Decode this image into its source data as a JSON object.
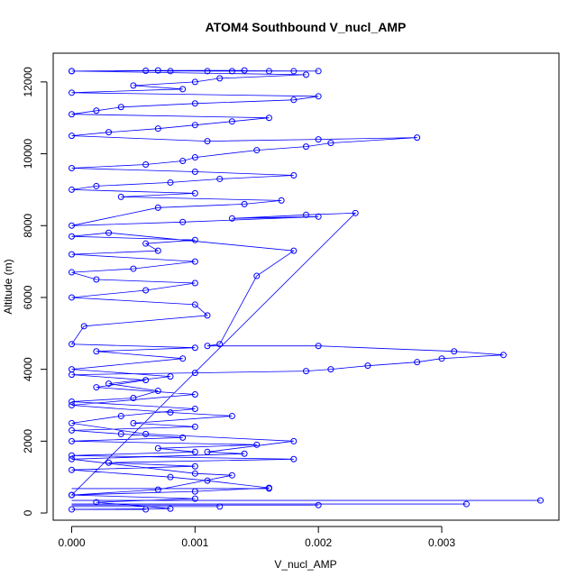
{
  "chart_data": {
    "type": "scatter",
    "title": "ATOM4 Southbound V_nucl_AMP",
    "xlabel": "V_nucl_AMP",
    "ylabel": "Altitude (m)",
    "xlim": [
      -0.00015,
      0.00395
    ],
    "ylim": [
      -200,
      12800
    ],
    "x_ticks": [
      0.0,
      0.001,
      0.002,
      0.003
    ],
    "x_tick_labels": [
      "0.000",
      "0.001",
      "0.002",
      "0.003"
    ],
    "y_ticks": [
      0,
      2000,
      4000,
      6000,
      8000,
      10000,
      12000
    ],
    "y_tick_labels": [
      "0",
      "2000",
      "4000",
      "6000",
      "8000",
      "10000",
      "12000"
    ],
    "grid": false,
    "legend": "none",
    "style": "points connected by lines (type='o')",
    "series_color": "#0000ff",
    "series": [
      {
        "x": [
          0.0,
          0.0008,
          0.0002,
          0.001,
          0.0,
          0.0007,
          0.0013,
          0.001,
          0.0,
          0.0014,
          0.0011,
          0.0018,
          0.0006,
          0.0,
          0.0004,
          0.001,
          0.0,
          0.0005,
          0.0007,
          0.0003,
          0.0008,
          0.0,
          0.0009,
          0.0002,
          0.001,
          0.0,
          0.0001,
          0.0011,
          0.001,
          0.0,
          0.0006,
          0.001,
          0.0002,
          0.0,
          0.0005,
          0.001,
          0.0,
          0.0007,
          0.0006,
          0.001,
          0.0,
          0.0003,
          0.0018,
          0.0015,
          0.0012,
          0.0011,
          0.002,
          0.0031,
          0.0035,
          0.003,
          0.0028,
          0.0024,
          0.0021,
          0.0019,
          0.001,
          0.0,
          0.0006,
          0.0002,
          0.001,
          0.0,
          0.0008,
          0.0013,
          0.0005,
          0.001,
          0.0,
          0.0004,
          0.0009,
          0.0,
          0.0015,
          0.0007,
          0.001,
          0.0,
          0.0018,
          0.0003,
          0.001,
          0.0,
          0.0008,
          0.0011,
          0.0016,
          0.001,
          0.0,
          0.0023,
          0.0019,
          0.0013,
          0.002,
          0.0009,
          0.0,
          0.0007,
          0.0014,
          0.0017,
          0.0004,
          0.001,
          0.0,
          0.0002,
          0.0008,
          0.0012,
          0.0018,
          0.001,
          0.0,
          0.0006,
          0.0009,
          0.001,
          0.0015,
          0.0019,
          0.0021,
          0.0028,
          0.002,
          0.0011,
          0.0,
          0.0003,
          0.0007,
          0.001,
          0.0013,
          0.0016,
          0.0,
          0.0002,
          0.0004,
          0.001,
          0.0018,
          0.002,
          0.0,
          0.0009,
          0.0005,
          0.001,
          0.0012,
          0.0019,
          0.0,
          0.0014,
          0.0008,
          0.0006,
          0.0011,
          0.0013,
          0.0016,
          0.0018,
          0.002,
          0.0007,
          0.0
        ],
        "y": [
          100,
          120,
          300,
          400,
          500,
          650,
          1050,
          1100,
          1500,
          1650,
          1700,
          2000,
          2200,
          2500,
          2700,
          2900,
          3100,
          3200,
          3400,
          3600,
          3800,
          4000,
          4300,
          4500,
          4600,
          4700,
          5200,
          5500,
          5800,
          6000,
          6200,
          6400,
          6500,
          6700,
          6800,
          7000,
          7200,
          7300,
          7500,
          7600,
          7700,
          7800,
          7300,
          6600,
          4700,
          4650,
          4650,
          4500,
          4400,
          4300,
          4200,
          4100,
          4000,
          3950,
          3900,
          3850,
          3700,
          3500,
          3300,
          3000,
          2800,
          2700,
          2500,
          2400,
          2300,
          2200,
          2100,
          2000,
          1900,
          1800,
          1700,
          1600,
          1500,
          1400,
          1300,
          1200,
          1000,
          900,
          700,
          600,
          500,
          8350,
          8300,
          8200,
          8250,
          8100,
          8000,
          8500,
          8600,
          8700,
          8800,
          8900,
          9000,
          9100,
          9200,
          9300,
          9400,
          9500,
          9600,
          9700,
          9800,
          9900,
          10100,
          10200,
          10300,
          10450,
          10400,
          10350,
          10500,
          10600,
          10700,
          10800,
          10900,
          11000,
          11100,
          11200,
          11300,
          11400,
          11500,
          11600,
          11700,
          11800,
          11900,
          12000,
          12100,
          12200,
          12300,
          12320,
          12300,
          12310,
          12300,
          12300,
          12300,
          12300,
          12300,
          12320,
          12300
        ],
        "x_extra": [
          0.0032,
          0.0038,
          0.002,
          0.0016,
          0.0012,
          0.0006
        ],
        "y_extra": [
          250,
          350,
          220,
          680,
          180,
          100
        ]
      }
    ]
  }
}
